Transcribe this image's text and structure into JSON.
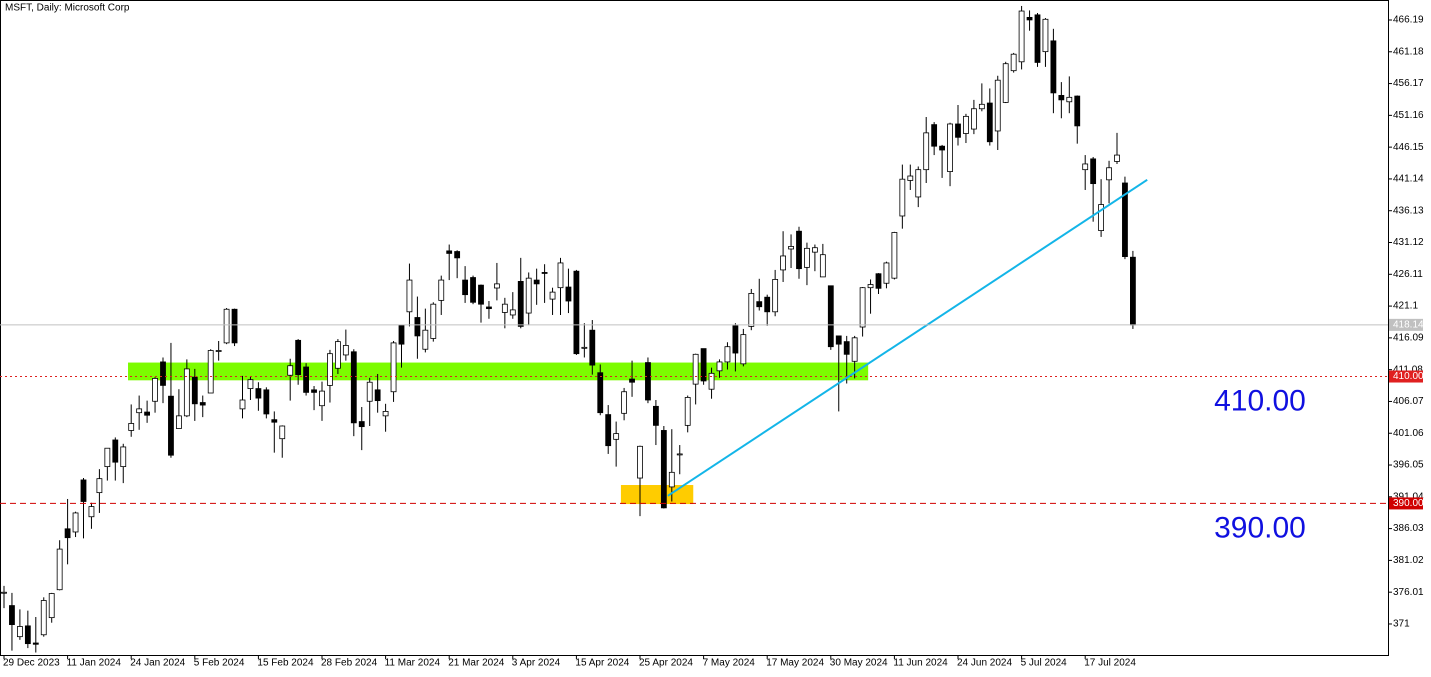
{
  "chart_data": {
    "type": "candlestick",
    "title": "MSFT, Daily:  Microsoft Corp",
    "categories": [
      "29 Dec 2023",
      null,
      null,
      null,
      null,
      null,
      null,
      null,
      "11 Jan 2024",
      null,
      null,
      null,
      null,
      null,
      null,
      null,
      "24 Jan 2024",
      null,
      null,
      null,
      null,
      null,
      null,
      null,
      "5 Feb 2024",
      null,
      null,
      null,
      null,
      null,
      null,
      null,
      "15 Feb 2024",
      null,
      null,
      null,
      null,
      null,
      null,
      null,
      "28 Feb 2024",
      null,
      null,
      null,
      null,
      null,
      null,
      null,
      "11 Mar 2024",
      null,
      null,
      null,
      null,
      null,
      null,
      null,
      "21 Mar 2024",
      null,
      null,
      null,
      null,
      null,
      null,
      null,
      "3 Apr 2024",
      null,
      null,
      null,
      null,
      null,
      null,
      null,
      "15 Apr 2024",
      null,
      null,
      null,
      null,
      null,
      null,
      null,
      "25 Apr 2024",
      null,
      null,
      null,
      null,
      null,
      null,
      null,
      "7 May 2024",
      null,
      null,
      null,
      null,
      null,
      null,
      null,
      "17 May 2024",
      null,
      null,
      null,
      null,
      null,
      null,
      null,
      "30 May 2024",
      null,
      null,
      null,
      null,
      null,
      null,
      null,
      "11 Jun 2024",
      null,
      null,
      null,
      null,
      null,
      null,
      null,
      "24 Jun 2024",
      null,
      null,
      null,
      null,
      null,
      null,
      null,
      "5 Jul 2024",
      null,
      null,
      null,
      null,
      null,
      null,
      null,
      "17 Jul 2024",
      null,
      null,
      null,
      null,
      null,
      null
    ],
    "open": [
      376.0,
      373.9,
      369.0,
      370.7,
      368.0,
      369.3,
      372.0,
      376.4,
      386.0,
      385.5,
      393.7,
      387.9,
      391.7,
      395.8,
      400.0,
      395.8,
      401.5,
      404.3,
      404.4,
      406.1,
      412.3,
      406.9,
      401.8,
      403.8,
      409.9,
      405.9,
      407.4,
      414.1,
      415.3,
      420.6,
      404.9,
      408.1,
      408.1,
      407.9,
      403.2,
      400.2,
      410.2,
      415.7,
      411.5,
      407.9,
      405.4,
      408.6,
      411.3,
      413.4,
      413.9,
      402.9,
      406.1,
      407.9,
      403.8,
      407.6,
      418.1,
      420.2,
      419.3,
      414.3,
      416.0,
      422.0,
      429.8,
      429.7,
      425.2,
      425.6,
      424.4,
      420.96,
      423.95,
      420.1,
      419.7,
      424.99,
      420.0,
      425.2,
      426.4,
      422.2,
      424.0,
      424.1,
      426.6,
      414.6,
      417.3,
      410.6,
      404.0,
      400.1,
      404.2,
      409.6,
      394.0,
      412.2,
      405.3,
      401.5,
      392.6,
      397.7,
      402.3,
      408.8,
      414.4,
      408.0,
      410.9,
      412.3,
      418.0,
      412.0,
      417.9,
      421.8,
      422.5,
      420.2,
      426.8,
      430.1,
      432.9,
      427.2,
      429.6,
      425.7,
      424.3,
      416.4,
      415.5,
      412.4,
      417.8,
      424.0,
      426.2,
      424.7,
      425.5,
      435.3,
      440.9,
      438.3,
      442.6,
      449.7,
      446.3,
      442.3,
      449.8,
      448.3,
      449.0,
      452.2,
      453.1,
      448.7,
      453.2,
      458.2,
      459.6,
      466.6,
      467.0,
      461.2,
      462.9,
      454.3,
      453.3,
      454.2,
      442.6,
      444.3,
      433.0,
      441.0,
      443.9,
      440.5,
      428.8
    ],
    "high": [
      377.0,
      375.9,
      373.3,
      373.1,
      372.1,
      375.2,
      375.9,
      384.2,
      390.7,
      388.7,
      394.0,
      390.1,
      395.4,
      398.7,
      400.4,
      399.4,
      405.6,
      407.0,
      406.2,
      409.9,
      413.0,
      415.3,
      408.0,
      412.7,
      411.2,
      407.0,
      414.3,
      415.6,
      420.8,
      420.7,
      410.1,
      410.0,
      409.1,
      408.3,
      404.5,
      402.3,
      412.8,
      415.9,
      412.1,
      408.5,
      409.2,
      414.2,
      415.9,
      417.4,
      414.3,
      405.2,
      409.8,
      410.4,
      405.7,
      415.6,
      418.2,
      427.8,
      422.6,
      420.7,
      421.7,
      425.9,
      430.8,
      429.9,
      427.4,
      425.9,
      424.5,
      421.9,
      427.9,
      422.4,
      423.3,
      428.7,
      426.4,
      427.0,
      427.7,
      424.0,
      428.7,
      427.0,
      426.8,
      418.4,
      418.9,
      411.9,
      405.5,
      402.9,
      408.2,
      412.5,
      399.1,
      413.0,
      406.3,
      402.2,
      401.7,
      399.2,
      407.0,
      413.6,
      414.4,
      411.4,
      412.7,
      415.4,
      418.4,
      417.5,
      423.8,
      425.4,
      422.9,
      426.8,
      432.9,
      432.4,
      433.6,
      431.1,
      430.8,
      430.9,
      424.3,
      416.4,
      416.4,
      416.4,
      424.1,
      425.3,
      426.3,
      428.1,
      432.8,
      443.4,
      443.4,
      443.1,
      450.9,
      450.1,
      446.5,
      450.0,
      452.8,
      451.4,
      453.6,
      456.2,
      455.4,
      457.4,
      459.6,
      461.0,
      468.4,
      467.7,
      467.3,
      466.5,
      464.8,
      456.4,
      457.3,
      454.3,
      444.9,
      444.6,
      441.1,
      444.0,
      448.4,
      441.5,
      429.8
    ],
    "low": [
      373.5,
      366.8,
      368.5,
      367.2,
      366.5,
      369.0,
      371.2,
      376.3,
      380.4,
      384.7,
      384.5,
      386.0,
      388.5,
      393.6,
      393.6,
      393.2,
      400.5,
      401.6,
      402.7,
      404.3,
      405.8,
      397.2,
      401.8,
      403.6,
      403.0,
      403.6,
      407.4,
      412.5,
      415.1,
      414.8,
      403.4,
      406.3,
      404.6,
      403.4,
      398.0,
      397.2,
      406.2,
      408.7,
      407.0,
      404.7,
      403.0,
      405.9,
      410.4,
      412.5,
      400.6,
      398.4,
      402.2,
      404.3,
      401.3,
      406.0,
      411.4,
      417.9,
      412.8,
      413.8,
      415.5,
      419.7,
      425.2,
      425.5,
      421.6,
      421.4,
      418.5,
      419.1,
      422.0,
      417.6,
      419.1,
      417.6,
      418.1,
      421.3,
      421.6,
      419.7,
      419.7,
      420.0,
      413.4,
      413.0,
      410.3,
      403.9,
      397.8,
      395.8,
      403.1,
      406.8,
      388.0,
      405.8,
      399.2,
      389.2,
      390.3,
      394.6,
      401.2,
      405.6,
      408.7,
      406.5,
      409.8,
      411.1,
      410.8,
      411.6,
      417.3,
      420.4,
      418.0,
      419.5,
      424.9,
      427.1,
      425.4,
      424.4,
      426.6,
      425.7,
      414.2,
      404.5,
      408.9,
      409.7,
      416.3,
      419.9,
      423.0,
      423.9,
      425.3,
      433.3,
      439.4,
      436.7,
      440.5,
      444.9,
      441.3,
      440.0,
      446.4,
      446.8,
      448.2,
      451.8,
      446.4,
      445.7,
      453.1,
      457.9,
      458.4,
      464.5,
      458.8,
      458.8,
      451.5,
      450.7,
      451.5,
      446.7,
      439.4,
      434.4,
      432.0,
      437.3,
      443.5,
      428.5,
      417.5
    ],
    "close": [
      376.0,
      370.9,
      370.6,
      367.9,
      367.8,
      374.7,
      375.8,
      382.8,
      384.6,
      388.5,
      390.3,
      389.5,
      393.9,
      398.7,
      396.5,
      398.9,
      402.6,
      404.9,
      403.9,
      409.7,
      408.6,
      397.6,
      403.8,
      411.2,
      405.7,
      405.5,
      414.1,
      414.1,
      420.6,
      415.3,
      406.3,
      409.5,
      406.6,
      404.1,
      402.8,
      402.2,
      411.7,
      410.3,
      407.5,
      407.5,
      407.7,
      413.6,
      415.5,
      414.9,
      402.7,
      402.1,
      409.1,
      406.2,
      404.5,
      415.3,
      415.1,
      425.2,
      416.4,
      417.3,
      421.4,
      425.2,
      429.4,
      428.7,
      422.9,
      421.7,
      421.4,
      420.7,
      424.6,
      421.4,
      420.5,
      417.9,
      425.5,
      424.6,
      426.3,
      423.3,
      427.9,
      421.9,
      413.6,
      414.6,
      411.8,
      404.3,
      399.1,
      401.0,
      407.6,
      409.1,
      399.0,
      406.3,
      402.3,
      389.3,
      394.9,
      397.8,
      406.7,
      413.5,
      409.3,
      410.5,
      412.3,
      414.7,
      413.7,
      416.6,
      423.1,
      421.0,
      420.2,
      425.3,
      429.0,
      430.5,
      427.0,
      430.2,
      430.3,
      429.2,
      414.7,
      415.1,
      413.5,
      416.1,
      424.0,
      424.5,
      423.9,
      427.9,
      432.7,
      441.1,
      441.6,
      442.6,
      448.4,
      446.3,
      445.7,
      449.8,
      447.7,
      451.0,
      452.2,
      452.9,
      447.0,
      456.7,
      459.3,
      460.8,
      467.6,
      466.2,
      459.5,
      466.3,
      454.7,
      453.6,
      454.0,
      449.5,
      443.5,
      440.4,
      437.1,
      442.9,
      444.9,
      428.9,
      418.14
    ],
    "ylim": [
      366.11,
      469.34
    ],
    "yticks": [
      466.19,
      461.18,
      456.17,
      451.16,
      446.15,
      441.14,
      436.13,
      431.12,
      426.11,
      421.1,
      416.09,
      411.08,
      406.07,
      401.06,
      396.05,
      391.04,
      386.03,
      381.02,
      376.01,
      371.0
    ],
    "current_price": 418.14,
    "levels": [
      {
        "value": 410,
        "label": "410.00",
        "color": "#e02020",
        "dash": "2 3"
      },
      {
        "value": 390,
        "label": "390.00",
        "color": "#d00000",
        "dash": "6 4"
      }
    ],
    "zones": [
      {
        "x": [
          15.6,
          108.7
        ],
        "y": [
          409.4,
          412.2
        ],
        "color": "#7cfc00"
      },
      {
        "x": [
          77.6,
          86.7
        ],
        "y": [
          389.9,
          392.9
        ],
        "color": "#ffcc00"
      }
    ],
    "trendline": {
      "x": [
        83.5,
        143.8
      ],
      "y": [
        391.2,
        441.0
      ],
      "color": "#13b5e8"
    },
    "bull_color": "#ffffff",
    "bear_color": "#000000"
  }
}
